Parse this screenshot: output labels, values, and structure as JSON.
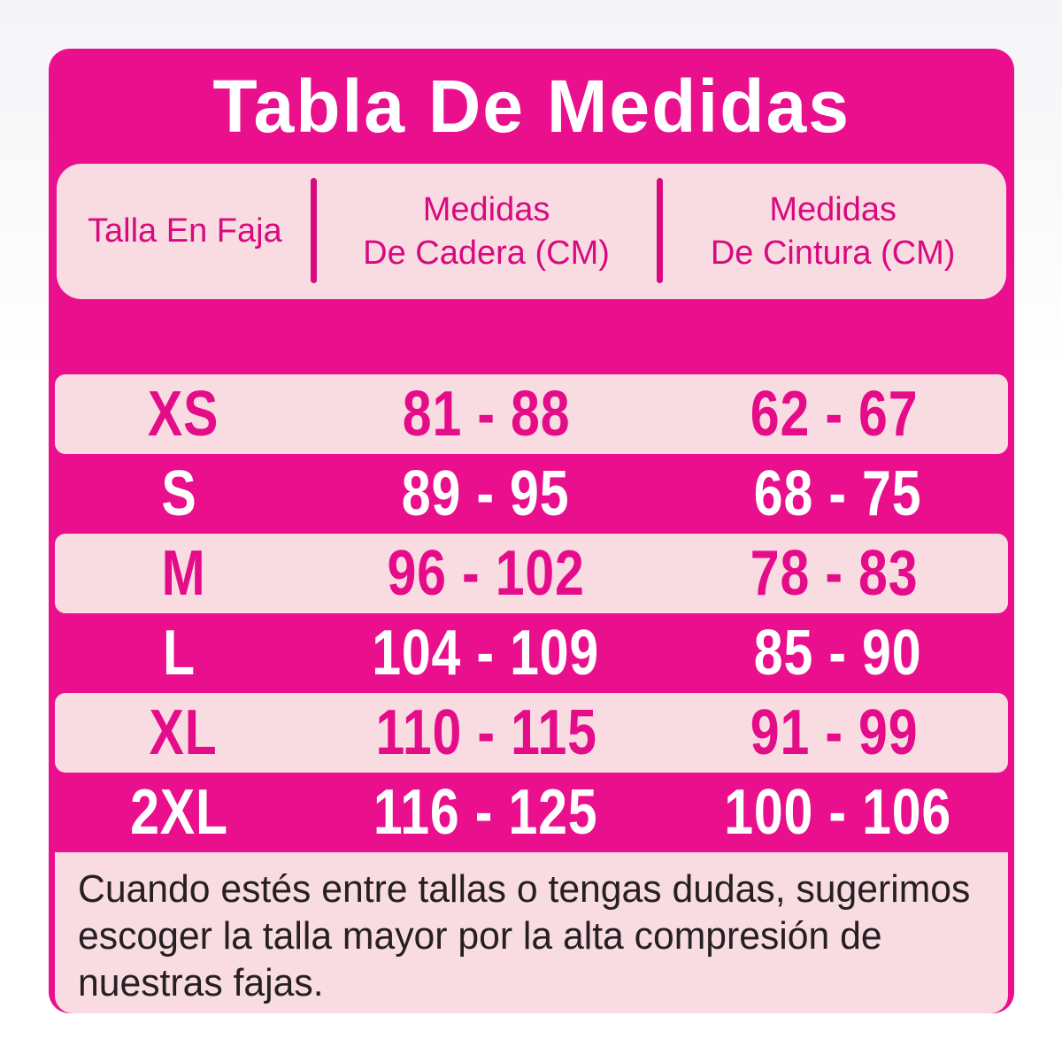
{
  "title": "Tabla De Medidas",
  "colors": {
    "magenta": "#e90f8d",
    "light_pink": "#f8dce2",
    "header_text_magenta": "#d9097f",
    "row_text_magenta": "#e50c89",
    "row_text_white": "#ffffff",
    "note_text": "#262023",
    "page_background_top": "#f5f4f6",
    "page_background_bottom": "#ffffff"
  },
  "table": {
    "columns": [
      {
        "line1": "Talla En Faja"
      },
      {
        "line1": "Medidas",
        "line2": "De Cadera (CM)"
      },
      {
        "line1": "Medidas",
        "line2": "De Cintura (CM)"
      }
    ],
    "rows": [
      {
        "size": "XS",
        "cadera": "81 - 88",
        "cintura": "62 - 67"
      },
      {
        "size": "S",
        "cadera": "89 - 95",
        "cintura": "68 - 75"
      },
      {
        "size": "M",
        "cadera": "96 - 102",
        "cintura": "78 - 83"
      },
      {
        "size": "L",
        "cadera": "104 - 109",
        "cintura": "85 - 90"
      },
      {
        "size": "XL",
        "cadera": "110 - 115",
        "cintura": "91 - 99"
      },
      {
        "size": "2XL",
        "cadera": "116 - 125",
        "cintura": "100 - 106"
      }
    ]
  },
  "note_lines": [
    "Cuando estés entre tallas o tengas dudas, sugerimos",
    "escoger la talla mayor por la alta compresión de",
    "nuestras fajas."
  ],
  "chart_data": {
    "type": "table",
    "title": "Tabla De Medidas",
    "columns": [
      "Talla En Faja",
      "Medidas De Cadera (CM)",
      "Medidas De Cintura (CM)"
    ],
    "rows": [
      [
        "XS",
        "81 - 88",
        "62 - 67"
      ],
      [
        "S",
        "89 - 95",
        "68 - 75"
      ],
      [
        "M",
        "96 - 102",
        "78 - 83"
      ],
      [
        "L",
        "104 - 109",
        "85 - 90"
      ],
      [
        "XL",
        "110 - 115",
        "91 - 99"
      ],
      [
        "2XL",
        "116 - 125",
        "100 - 106"
      ]
    ],
    "note": "Cuando estés entre tallas o tengas dudas, sugerimos escoger la talla mayor por la alta compresión de nuestras fajas."
  }
}
